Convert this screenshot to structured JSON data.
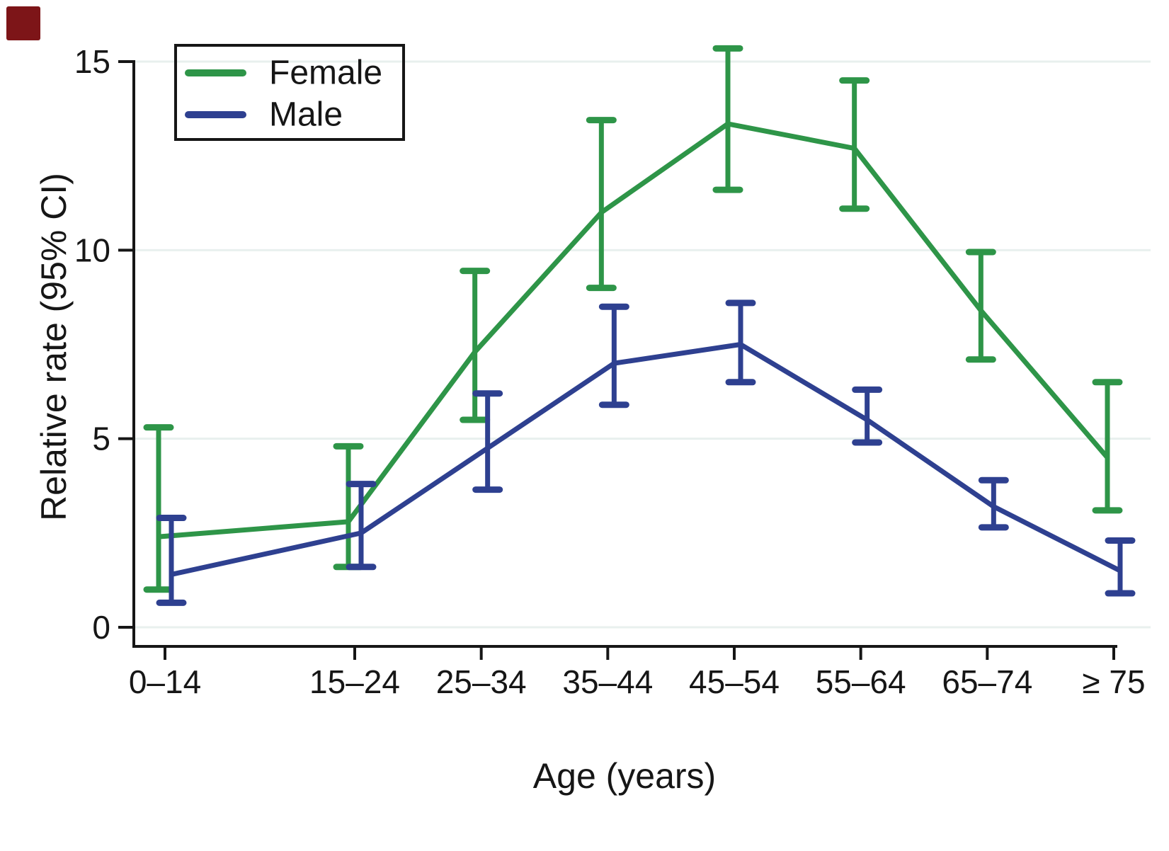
{
  "figure": {
    "background": "#ffffff",
    "corner_marker_color": "#7d1518",
    "text_color": "#161616",
    "axis_color": "#161616"
  },
  "chart_data": {
    "type": "line",
    "title": "",
    "xlabel": "Age (years)",
    "ylabel": "Relative rate (95% CI)",
    "categories": [
      "0–14",
      "15–24",
      "25–34",
      "35–44",
      "45–54",
      "55–64",
      "65–74",
      "≥ 75"
    ],
    "x_numeric": [
      7.5,
      22.5,
      32.5,
      42.5,
      52.5,
      62.5,
      72.5,
      82.5
    ],
    "yticks": [
      0,
      5,
      10,
      15
    ],
    "ytick_labels": [
      "0",
      "5",
      "10",
      "15"
    ],
    "ylim": [
      0,
      15.6
    ],
    "grid": "horizontal",
    "grid_color": "#e8f0ee",
    "legend_position": "top-left",
    "error_bars": "95% CI, capped",
    "series": [
      {
        "name": "Female",
        "color": "#2e9548",
        "values": [
          2.4,
          2.8,
          7.3,
          11.0,
          13.35,
          12.7,
          8.4,
          4.5
        ],
        "ci_low": [
          1.0,
          1.6,
          5.5,
          9.0,
          11.6,
          11.1,
          7.1,
          3.1
        ],
        "ci_high": [
          5.3,
          4.8,
          9.45,
          13.45,
          15.35,
          14.5,
          9.95,
          6.5
        ]
      },
      {
        "name": "Male",
        "color": "#2e4090",
        "values": [
          1.4,
          2.5,
          4.75,
          7.0,
          7.5,
          5.5,
          3.2,
          1.5
        ],
        "ci_low": [
          0.65,
          1.6,
          3.65,
          5.9,
          6.5,
          4.9,
          2.65,
          0.9
        ],
        "ci_high": [
          2.9,
          3.8,
          6.2,
          8.5,
          8.6,
          6.3,
          3.9,
          2.3
        ]
      }
    ]
  }
}
